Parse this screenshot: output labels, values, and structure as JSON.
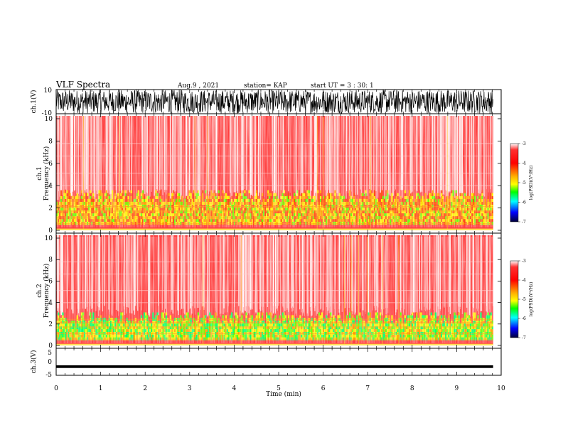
{
  "header": {
    "title": "VLF Spectra",
    "date": "Aug.9 , 2021",
    "station": "station= KAP",
    "start": "start UT = 3 : 30: 1"
  },
  "colorbar": {
    "label": "log(PSD)(V²/Hz)",
    "ticks": [
      "-3",
      "-4",
      "-5",
      "-6",
      "-7"
    ],
    "stops": [
      "#ff0000",
      "#ff9900",
      "#ffff00",
      "#00ff00",
      "#00ffff",
      "#0000ff",
      "#00003a"
    ]
  },
  "chart_data": [
    {
      "type": "line",
      "panel": "ch1-waveform",
      "ylabel": "ch.1(V)",
      "ylim": [
        -10,
        10
      ],
      "ytick_labels": [
        "10",
        "-10"
      ],
      "x_range_min": [
        0,
        9.82
      ],
      "description_signal": "noisy waveform spanning full range"
    },
    {
      "type": "heatmap",
      "panel": "ch1-spectrogram",
      "ylabel": "ch.1 Frequency (kHz)",
      "ylim": [
        0,
        10
      ],
      "yticks": [
        "0",
        "2",
        "4",
        "6",
        "8",
        "10"
      ],
      "x_range_min": [
        0,
        9.82
      ],
      "zlim": [
        -7,
        -3
      ],
      "dominant_level": -3.5,
      "enhanced_band_khz": [
        0.5,
        3.5
      ],
      "enhanced_band_level": -4.5
    },
    {
      "type": "heatmap",
      "panel": "ch2-spectrogram",
      "ylabel": "ch.2 Frequency (kHz)",
      "ylim": [
        0,
        10
      ],
      "yticks": [
        "0",
        "2",
        "4",
        "6",
        "8",
        "10"
      ],
      "x_range_min": [
        0,
        9.82
      ],
      "zlim": [
        -7,
        -3
      ],
      "dominant_level": -3.5,
      "enhanced_band_khz": [
        0.5,
        3
      ],
      "enhanced_band_level": -5
    },
    {
      "type": "line",
      "panel": "ch3-waveform",
      "ylabel": "ch.3(V)",
      "ylim": [
        -5,
        5
      ],
      "yticks": [
        "5",
        "0",
        "-5"
      ],
      "x_range_min": [
        0,
        9.82
      ],
      "signal_center_v": -1.8,
      "signal_halfwidth_v": 0.5
    }
  ],
  "xaxis": {
    "label": "Time (min)",
    "ticks": [
      "0",
      "1",
      "2",
      "3",
      "4",
      "5",
      "6",
      "7",
      "8",
      "9",
      "10"
    ],
    "range": [
      0,
      10
    ]
  }
}
